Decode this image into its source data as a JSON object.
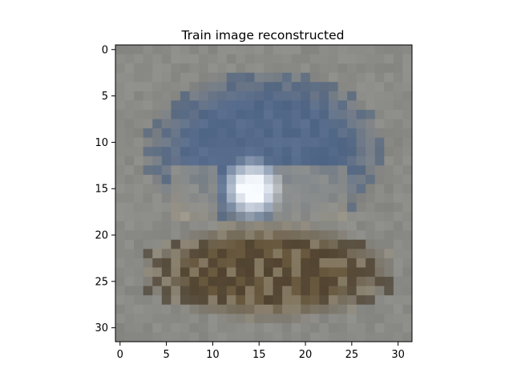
{
  "figure": {
    "title": "Train image reconstructed"
  },
  "image": {
    "grid_size": [
      32,
      32
    ],
    "description_regions": {
      "background": "#8a8a86",
      "upper_blue": "#5a6f8f",
      "dark_blue": "#3f5676",
      "bright_spot": "#f2f6fb",
      "lower_brown": "#6a5a40",
      "dark_brown": "#3e3222",
      "pale_tan": "#a79f8c"
    }
  },
  "axes": {
    "x_ticks": [
      "0",
      "5",
      "10",
      "15",
      "20",
      "25",
      "30"
    ],
    "y_ticks": [
      "0",
      "5",
      "10",
      "15",
      "20",
      "25",
      "30"
    ],
    "xlim": [
      -0.5,
      31.5
    ],
    "ylim": [
      31.5,
      -0.5
    ]
  }
}
